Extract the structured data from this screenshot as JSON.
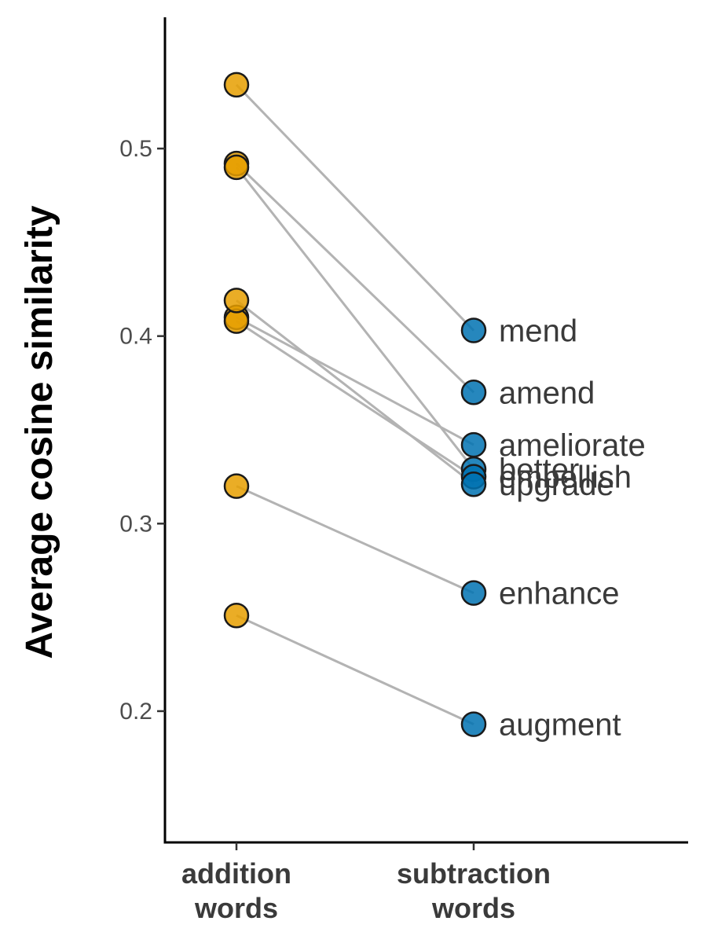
{
  "chart_data": {
    "type": "scatter",
    "ylabel": "Average cosine similarity",
    "xlabel": "",
    "categories": [
      [
        "addition",
        "words"
      ],
      [
        "subtraction",
        "words"
      ]
    ],
    "ylim": [
      0.13,
      0.57
    ],
    "yticks": [
      "0.2",
      "0.3",
      "0.4",
      "0.5"
    ],
    "grid": false,
    "legend": "none",
    "colors": {
      "addition": "#E69F00",
      "subtraction": "#0072B2",
      "connector": "#b3b3b3",
      "axis": "#000000"
    },
    "pairs": [
      {
        "word": "mend",
        "addition": 0.534,
        "subtraction": 0.403
      },
      {
        "word": "amend",
        "addition": 0.492,
        "subtraction": 0.37
      },
      {
        "word": "ameliorate",
        "addition": 0.41,
        "subtraction": 0.342
      },
      {
        "word": "better",
        "addition": 0.49,
        "subtraction": 0.329
      },
      {
        "word": "embellish",
        "addition": 0.408,
        "subtraction": 0.325
      },
      {
        "word": "upgrade",
        "addition": 0.419,
        "subtraction": 0.321
      },
      {
        "word": "enhance",
        "addition": 0.32,
        "subtraction": 0.263
      },
      {
        "word": "augment",
        "addition": 0.251,
        "subtraction": 0.193
      }
    ]
  }
}
